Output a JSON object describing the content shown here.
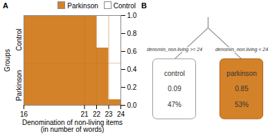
{
  "chart_data": [
    {
      "type": "histogram",
      "title": "A",
      "xlabel": "Denomination of non-living items\n(in number of words)",
      "ylabel": "Groups",
      "bins": [
        16,
        22,
        23,
        24
      ],
      "stacked": true,
      "series": [
        {
          "name": "Parkinson",
          "color": "#D4822A",
          "values": [
            1.0,
            0.64,
            0.065
          ]
        },
        {
          "name": "Control",
          "color": "#FFFFFF",
          "values": [
            0.0,
            0.36,
            0.935
          ]
        }
      ],
      "xlim": [
        16,
        24
      ],
      "xticks": [
        16,
        21,
        22,
        23,
        24
      ],
      "ylim": [
        0,
        1.0
      ],
      "yticks": [
        {
          "value": 0.22,
          "label": "Parkinson"
        },
        {
          "value": 0.73,
          "label": "Control"
        }
      ],
      "y2lim": [
        0,
        1.0
      ],
      "y2ticks": [
        {
          "value": 0.0,
          "label": "0.0"
        },
        0.2,
        0.4,
        0.6,
        0.8,
        {
          "value": 1.0,
          "label": "1.0"
        }
      ],
      "vlines": [
        21,
        22,
        23
      ],
      "hlines": [
        0.47
      ],
      "legend": "upper right"
    },
    {
      "type": "tree",
      "title": "B",
      "branch_labels": [
        "denomin_non.living >= 24",
        "denomin_non.living < 24"
      ],
      "categories": [
        "control",
        "parkinson"
      ],
      "values": [
        0.09,
        0.85
      ],
      "data_labels": true,
      "percents": [
        47,
        53
      ],
      "percent_labels": [
        "47%",
        "53%"
      ],
      "colors": [
        "#FFFFFF",
        "#D4822A"
      ]
    }
  ]
}
